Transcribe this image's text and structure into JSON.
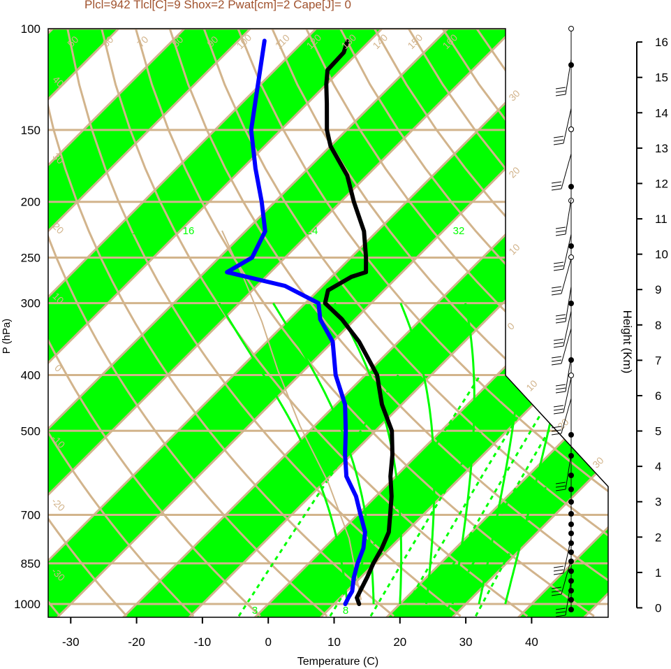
{
  "header": {
    "title": "Plcl=942 Tlcl[C]=9 Shox=2 Pwat[cm]=2 Cape[J]= 0"
  },
  "chart_data": {
    "type": "line",
    "subtype": "skew-t log-p sounding diagram",
    "title": "Plcl=942 Tlcl[C]=9 Shox=2 Pwat[cm]=2 Cape[J]= 0",
    "xlabel": "Temperature (C)",
    "ylabel": "P (hPa)",
    "y2label": "Height (Km)",
    "xlim": [
      -34,
      40
    ],
    "ylim": [
      1050,
      100
    ],
    "x_ticks": [
      -30,
      -20,
      -10,
      0,
      10,
      20,
      30,
      40
    ],
    "pressure_levels": [
      100,
      150,
      200,
      250,
      300,
      400,
      500,
      700,
      850,
      1000
    ],
    "height_ticks": [
      0,
      1,
      2,
      3,
      4,
      5,
      6,
      7,
      8,
      9,
      10,
      11,
      12,
      13,
      14,
      15,
      16
    ],
    "height_axis_range": [
      -0.05,
      16.2
    ],
    "isotherm_labels": [
      "-30",
      "-20",
      "-10",
      "0",
      "10",
      "20",
      "30"
    ],
    "isotherm_top_labels": [
      "50",
      "60",
      "70",
      "80",
      "90",
      "100",
      "110",
      "120",
      "130",
      "140",
      "150",
      "160"
    ],
    "theta_left_labels": [
      "40",
      "30",
      "20",
      "10",
      "0",
      "-10",
      "-20",
      "-30"
    ],
    "mixing_ratio_labels": [
      "3",
      "8",
      "12",
      "16",
      "24",
      "32"
    ],
    "shading": {
      "band_color": "#00ff00",
      "line_color": "#d2b48c"
    },
    "series": [
      {
        "name": "Temperature",
        "color": "#000000",
        "points": [
          {
            "p": 1000,
            "t": 13.8
          },
          {
            "p": 975,
            "t": 12.5
          },
          {
            "p": 950,
            "t": 12.0
          },
          {
            "p": 900,
            "t": 11.0
          },
          {
            "p": 850,
            "t": 9.8
          },
          {
            "p": 800,
            "t": 8.8
          },
          {
            "p": 750,
            "t": 7.4
          },
          {
            "p": 700,
            "t": 5.0
          },
          {
            "p": 650,
            "t": 2.4
          },
          {
            "p": 600,
            "t": -0.8
          },
          {
            "p": 550,
            "t": -3.8
          },
          {
            "p": 500,
            "t": -7.5
          },
          {
            "p": 450,
            "t": -13.0
          },
          {
            "p": 400,
            "t": -18.2
          },
          {
            "p": 350,
            "t": -26.0
          },
          {
            "p": 320,
            "t": -32.0
          },
          {
            "p": 300,
            "t": -37.0
          },
          {
            "p": 285,
            "t": -38.5
          },
          {
            "p": 270,
            "t": -37.0
          },
          {
            "p": 265,
            "t": -35.5
          },
          {
            "p": 250,
            "t": -37.7
          },
          {
            "p": 225,
            "t": -42.0
          },
          {
            "p": 200,
            "t": -48.0
          },
          {
            "p": 180,
            "t": -53.0
          },
          {
            "p": 160,
            "t": -60.0
          },
          {
            "p": 150,
            "t": -63.0
          },
          {
            "p": 135,
            "t": -67.0
          },
          {
            "p": 125,
            "t": -70.0
          },
          {
            "p": 118,
            "t": -72.0
          },
          {
            "p": 110,
            "t": -72.2
          },
          {
            "p": 105,
            "t": -73.4
          }
        ]
      },
      {
        "name": "Dewpoint",
        "color": "#0000ff",
        "points": [
          {
            "p": 1000,
            "t": 11.7
          },
          {
            "p": 975,
            "t": 11.2
          },
          {
            "p": 950,
            "t": 10.8
          },
          {
            "p": 900,
            "t": 9.0
          },
          {
            "p": 850,
            "t": 7.4
          },
          {
            "p": 800,
            "t": 6.0
          },
          {
            "p": 750,
            "t": 3.8
          },
          {
            "p": 700,
            "t": 0.5
          },
          {
            "p": 650,
            "t": -3.0
          },
          {
            "p": 600,
            "t": -7.5
          },
          {
            "p": 550,
            "t": -11.0
          },
          {
            "p": 500,
            "t": -14.5
          },
          {
            "p": 450,
            "t": -18.6
          },
          {
            "p": 400,
            "t": -24.5
          },
          {
            "p": 350,
            "t": -30.0
          },
          {
            "p": 320,
            "t": -35.3
          },
          {
            "p": 300,
            "t": -38.0
          },
          {
            "p": 280,
            "t": -45.7
          },
          {
            "p": 265,
            "t": -56.6
          },
          {
            "p": 250,
            "t": -55.0
          },
          {
            "p": 225,
            "t": -57.0
          },
          {
            "p": 200,
            "t": -62.0
          },
          {
            "p": 175,
            "t": -68.0
          },
          {
            "p": 150,
            "t": -74.5
          },
          {
            "p": 105,
            "t": -86.0
          }
        ]
      }
    ]
  }
}
